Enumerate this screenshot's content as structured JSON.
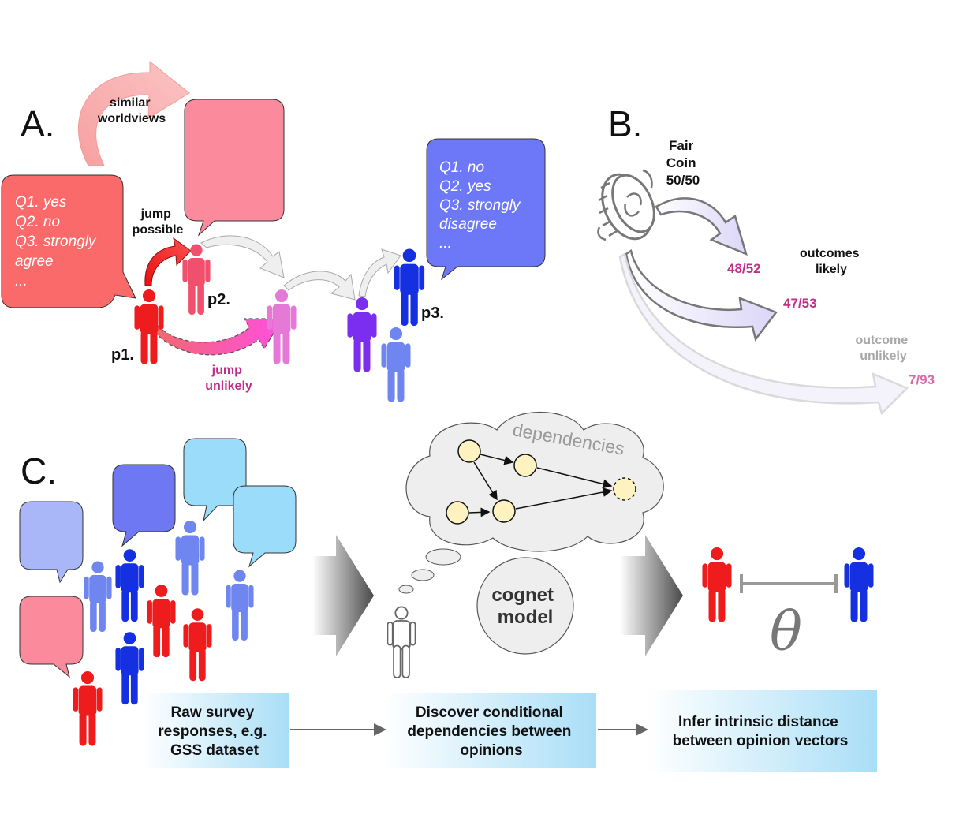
{
  "panel_a": {
    "letter": "A.",
    "similar_worldviews": [
      "similar",
      "worldviews"
    ],
    "jump_possible": [
      "jump",
      "possible"
    ],
    "jump_unlikely": [
      "jump",
      "unlikely"
    ],
    "bubble_red": [
      "Q1. yes",
      "Q2. no",
      "Q3. strongly",
      "agree",
      "..."
    ],
    "bubble_blue": [
      "Q1. no",
      "Q2. yes",
      "Q3. strongly",
      "disagree",
      "..."
    ],
    "p1": "p1.",
    "p2": "p2.",
    "p3": "p3."
  },
  "panel_b": {
    "letter": "B.",
    "coin": [
      "Fair",
      "Coin",
      "50/50"
    ],
    "outcomes_likely": [
      "outcomes",
      "likely"
    ],
    "outcome_unlikely": [
      "outcome",
      "unlikely"
    ],
    "r1": "48/52",
    "r2": "47/53",
    "r3": "7/93"
  },
  "panel_c": {
    "letter": "C.",
    "cloud_label": "dependencies",
    "cognet": [
      "cognet",
      "model"
    ],
    "theta": "θ",
    "box1": [
      "Raw survey",
      "responses, e.g.",
      "GSS dataset"
    ],
    "box2": [
      "Discover conditional",
      "dependencies between",
      "opinions"
    ],
    "box3": [
      "Infer intrinsic distance",
      "between opinion vectors"
    ]
  },
  "colors": {
    "red": "#ee1c1c",
    "pink": "#f0738a",
    "magenta": "#e57ad6",
    "purple": "#7b2df0",
    "blue": "#1430e0",
    "light_blue": "#6f86f0",
    "cyan_bubble": "#9adcfa"
  }
}
